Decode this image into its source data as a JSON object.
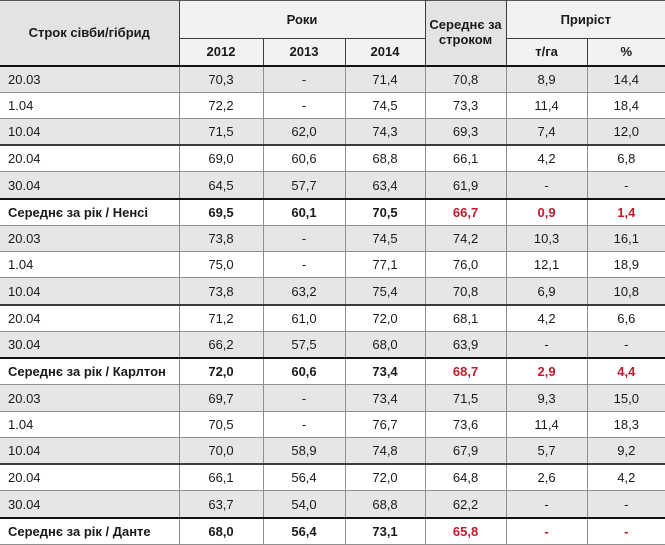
{
  "colors": {
    "accent_red": "#c4182b",
    "shaded_row_bg": "#e6e6e6",
    "header_dark_bg": "#e3e3e3",
    "header_light_bg": "#f2f2f2"
  },
  "table": {
    "header": {
      "col1": "Строк сівби/гібрид",
      "years_group": "Роки",
      "years": [
        "2012",
        "2013",
        "2014"
      ],
      "avg_col": "Середнє за строком",
      "gain_group": "Приріст",
      "gain_units": "т/га",
      "gain_percent": "%"
    },
    "rows": [
      {
        "label": "20.03",
        "values": [
          "70,3",
          "-",
          "71,4",
          "70,8",
          "8,9",
          "14,4"
        ],
        "summary": false
      },
      {
        "label": "1.04",
        "values": [
          "72,2",
          "-",
          "74,5",
          "73,3",
          "11,4",
          "18,4"
        ],
        "summary": false
      },
      {
        "label": "10.04",
        "values": [
          "71,5",
          "62,0",
          "74,3",
          "69,3",
          "7,4",
          "12,0"
        ],
        "summary": false
      },
      {
        "label": "20.04",
        "values": [
          "69,0",
          "60,6",
          "68,8",
          "66,1",
          "4,2",
          "6,8"
        ],
        "summary": false
      },
      {
        "label": "30.04",
        "values": [
          "64,5",
          "57,7",
          "63,4",
          "61,9",
          "-",
          "-"
        ],
        "summary": false
      },
      {
        "label": "Середнє за рік / Ненсі",
        "values": [
          "69,5",
          "60,1",
          "70,5",
          "66,7",
          "0,9",
          "1,4"
        ],
        "summary": true
      },
      {
        "label": "20.03",
        "values": [
          "73,8",
          "-",
          "74,5",
          "74,2",
          "10,3",
          "16,1"
        ],
        "summary": false
      },
      {
        "label": "1.04",
        "values": [
          "75,0",
          "-",
          "77,1",
          "76,0",
          "12,1",
          "18,9"
        ],
        "summary": false
      },
      {
        "label": "10.04",
        "values": [
          "73,8",
          "63,2",
          "75,4",
          "70,8",
          "6,9",
          "10,8"
        ],
        "summary": false
      },
      {
        "label": "20.04",
        "values": [
          "71,2",
          "61,0",
          "72,0",
          "68,1",
          "4,2",
          "6,6"
        ],
        "summary": false
      },
      {
        "label": "30.04",
        "values": [
          "66,2",
          "57,5",
          "68,0",
          "63,9",
          "-",
          "-"
        ],
        "summary": false
      },
      {
        "label": "Середнє за рік / Карлтон",
        "values": [
          "72,0",
          "60,6",
          "73,4",
          "68,7",
          "2,9",
          "4,4"
        ],
        "summary": true
      },
      {
        "label": "20.03",
        "values": [
          "69,7",
          "-",
          "73,4",
          "71,5",
          "9,3",
          "15,0"
        ],
        "summary": false
      },
      {
        "label": "1.04",
        "values": [
          "70,5",
          "-",
          "76,7",
          "73,6",
          "11,4",
          "18,3"
        ],
        "summary": false
      },
      {
        "label": "10.04",
        "values": [
          "70,0",
          "58,9",
          "74,8",
          "67,9",
          "5,7",
          "9,2"
        ],
        "summary": false
      },
      {
        "label": "20.04",
        "values": [
          "66,1",
          "56,4",
          "72,0",
          "64,8",
          "2,6",
          "4,2"
        ],
        "summary": false
      },
      {
        "label": "30.04",
        "values": [
          "63,7",
          "54,0",
          "68,8",
          "62,2",
          "-",
          "-"
        ],
        "summary": false
      },
      {
        "label": "Середнє за рік / Данте",
        "values": [
          "68,0",
          "56,4",
          "73,1",
          "65,8",
          "-",
          "-"
        ],
        "summary": true
      }
    ]
  }
}
